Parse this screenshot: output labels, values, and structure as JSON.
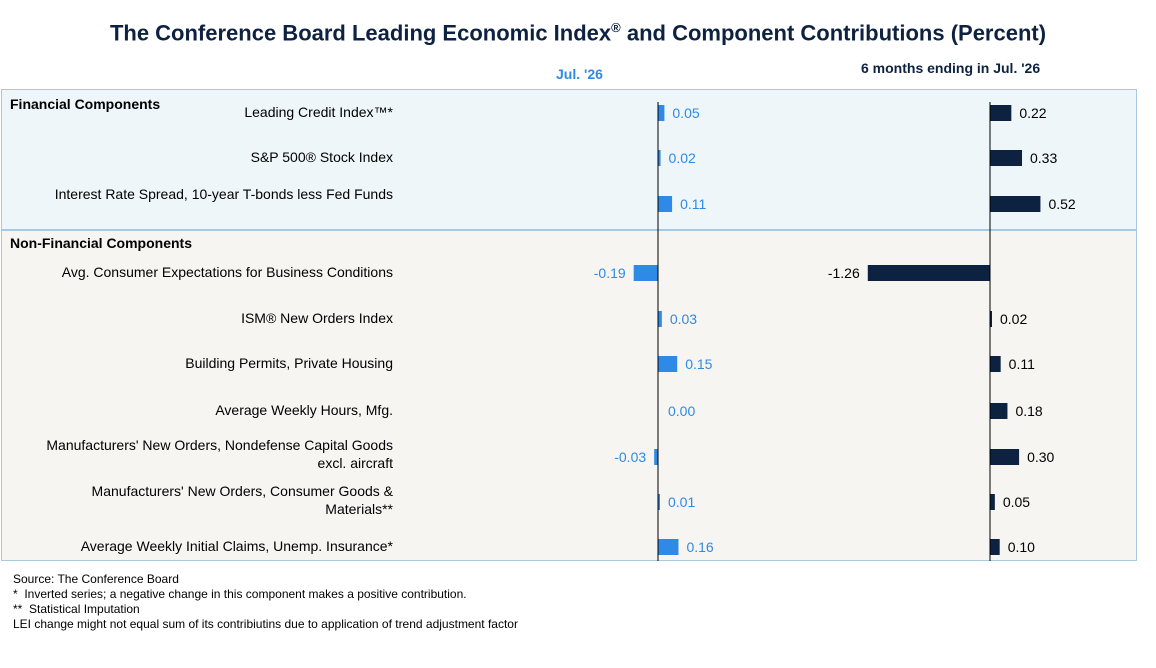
{
  "title_main": "The Conference Board Leading Economic Index",
  "title_sup": "®",
  "title_rest": " and Component Contributions (Percent)",
  "chart_data": {
    "type": "bar",
    "orientation": "horizontal",
    "groups": [
      "Financial Components",
      "Non-Financial Components"
    ],
    "categories": [
      "Leading Credit Index™*",
      "S&P 500® Stock Index",
      "Interest Rate Spread, 10-year T-bonds less Fed Funds",
      "Avg. Consumer Expectations for Business Conditions",
      "ISM® New Orders Index",
      "Building Permits, Private Housing",
      "Average Weekly Hours, Mfg.",
      "Manufacturers' New Orders, Nondefense Capital Goods excl. aircraft",
      "Manufacturers' New Orders, Consumer Goods & Materials**",
      "Average Weekly Initial Claims, Unemp. Insurance*"
    ],
    "category_group": [
      0,
      0,
      0,
      1,
      1,
      1,
      1,
      1,
      1,
      1
    ],
    "series": [
      {
        "name": "Jul.  '26",
        "color": "#2e8ae6",
        "values": [
          0.05,
          0.02,
          0.11,
          -0.19,
          0.03,
          0.15,
          0.0,
          -0.03,
          0.01,
          0.16
        ],
        "labels": [
          "0.05",
          "0.02",
          "0.11",
          "-0.19",
          "0.03",
          "0.15",
          "0.00",
          "-0.03",
          "0.01",
          "0.16"
        ]
      },
      {
        "name": "6 months ending in Jul.  '26",
        "color": "#0d2240",
        "values": [
          0.22,
          0.33,
          0.52,
          -1.26,
          0.02,
          0.11,
          0.18,
          0.3,
          0.05,
          0.1
        ],
        "labels": [
          "0.22",
          "0.33",
          "0.52",
          "-1.26",
          "0.02",
          "0.11",
          "0.18",
          "0.30",
          "0.05",
          "0.10"
        ]
      }
    ]
  },
  "footnotes": [
    "Source: The Conference Board",
    "*  Inverted series; a negative change in this component makes a positive contribution.",
    "**  Statistical Imputation",
    "LEI change might not equal sum of its contribiutins due to application of trend adjustment factor"
  ]
}
